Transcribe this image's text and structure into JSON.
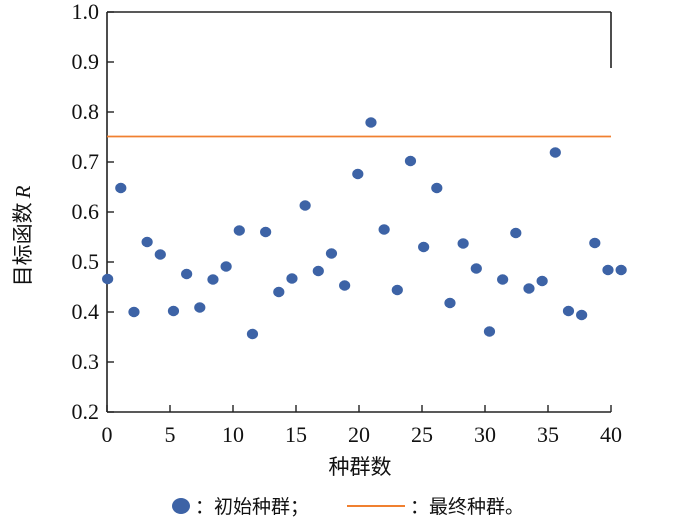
{
  "chart_data": {
    "type": "scatter",
    "xlabel": "种群数",
    "ylabel": "目标函数",
    "ylabel_var": "R",
    "xlim": [
      0,
      40
    ],
    "ylim": [
      0.2,
      1.0
    ],
    "x_ticks": [
      "0",
      "5",
      "10",
      "15",
      "20",
      "25",
      "30",
      "35",
      "40"
    ],
    "y_ticks": [
      "0.2",
      "0.3",
      "0.4",
      "0.5",
      "0.6",
      "0.7",
      "0.8",
      "0.9",
      "1.0"
    ],
    "grid": false,
    "legend_placement": "bottom",
    "series": [
      {
        "name": "初始种群",
        "kind": "scatter",
        "color": "#3d63a6",
        "x": [
          0,
          1,
          2,
          3,
          4,
          5,
          6,
          7,
          8,
          9,
          10,
          11,
          12,
          13,
          14,
          15,
          16,
          17,
          18,
          19,
          20,
          21,
          22,
          23,
          24,
          25,
          26,
          27,
          28,
          29,
          30,
          31,
          32,
          33,
          34,
          35,
          36,
          37,
          38,
          39
        ],
        "y": [
          0.466,
          0.648,
          0.4,
          0.54,
          0.515,
          0.402,
          0.476,
          0.409,
          0.465,
          0.491,
          0.563,
          0.356,
          0.56,
          0.44,
          0.467,
          0.613,
          0.482,
          0.517,
          0.453,
          0.676,
          0.779,
          0.565,
          0.444,
          0.702,
          0.53,
          0.648,
          0.418,
          0.537,
          0.487,
          0.361,
          0.465,
          0.558,
          0.447,
          0.462,
          0.719,
          0.402,
          0.394,
          0.538,
          0.484,
          0.484
        ]
      },
      {
        "name": "最终种群",
        "kind": "line",
        "color": "#f08030",
        "y": 0.751
      }
    ],
    "legend": [
      {
        "label": "：初始种群；",
        "marker": "circle",
        "color": "#3d63a6"
      },
      {
        "label": "：最终种群。",
        "marker": "line",
        "color": "#f08030"
      }
    ]
  }
}
